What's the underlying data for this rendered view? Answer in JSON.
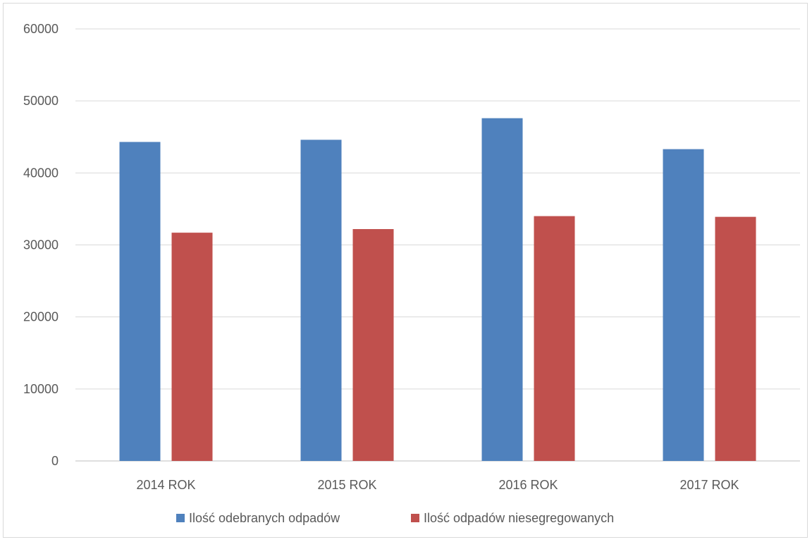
{
  "chart_data": {
    "type": "bar",
    "title": "",
    "xlabel": "",
    "ylabel": "",
    "categories": [
      "2014 ROK",
      "2015 ROK",
      "2016 ROK",
      "2017 ROK"
    ],
    "series": [
      {
        "name": "Ilość odebranych odpadów",
        "color": "#4f81bd",
        "values": [
          44300,
          44600,
          47600,
          43300
        ]
      },
      {
        "name": "Ilość odpadów niesegregowanych",
        "color": "#c0504d",
        "values": [
          31700,
          32200,
          34000,
          33900
        ]
      }
    ],
    "ylim": [
      0,
      60000
    ],
    "yticks": [
      "0",
      "10000",
      "20000",
      "30000",
      "40000",
      "50000",
      "60000"
    ],
    "ytick_values": [
      0,
      10000,
      20000,
      30000,
      40000,
      50000,
      60000
    ],
    "grid": true,
    "legend_position": "bottom"
  }
}
